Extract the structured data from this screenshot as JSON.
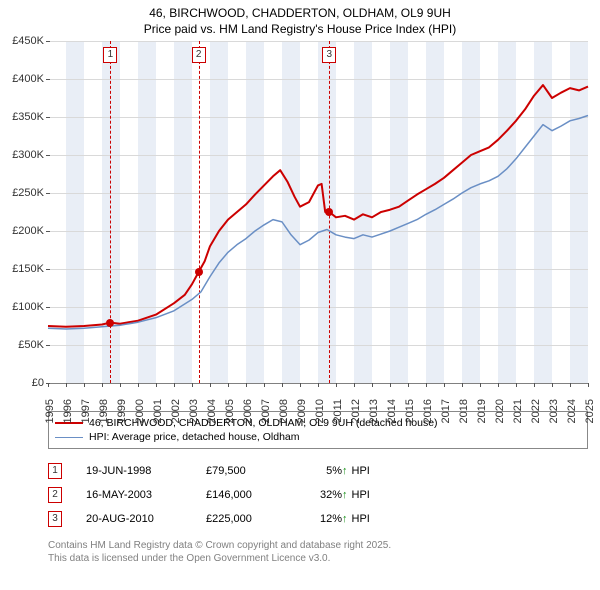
{
  "title": {
    "line1": "46, BIRCHWOOD, CHADDERTON, OLDHAM, OL9 9UH",
    "line2": "Price paid vs. HM Land Registry's House Price Index (HPI)"
  },
  "chart": {
    "type": "line",
    "background_color": "#ffffff",
    "grid_color": "#d9d9d9",
    "zero_line_color": "#808080",
    "marker_border_color": "#cc0000",
    "vband_color": "#e9eef6",
    "xlim": [
      1995,
      2025
    ],
    "ylim": [
      0,
      450000
    ],
    "ytick_step": 50000,
    "yticks": [
      {
        "v": 0,
        "label": "£0"
      },
      {
        "v": 50000,
        "label": "£50K"
      },
      {
        "v": 100000,
        "label": "£100K"
      },
      {
        "v": 150000,
        "label": "£150K"
      },
      {
        "v": 200000,
        "label": "£200K"
      },
      {
        "v": 250000,
        "label": "£250K"
      },
      {
        "v": 300000,
        "label": "£300K"
      },
      {
        "v": 350000,
        "label": "£350K"
      },
      {
        "v": 400000,
        "label": "£400K"
      },
      {
        "v": 450000,
        "label": "£450K"
      }
    ],
    "xticks": [
      1995,
      1996,
      1997,
      1998,
      1999,
      2000,
      2001,
      2002,
      2003,
      2004,
      2005,
      2006,
      2007,
      2008,
      2009,
      2010,
      2011,
      2012,
      2013,
      2014,
      2015,
      2016,
      2017,
      2018,
      2019,
      2020,
      2021,
      2022,
      2023,
      2024,
      2025
    ],
    "vbands_start": [
      1996,
      1998,
      2000,
      2002,
      2004,
      2006,
      2008,
      2010,
      2012,
      2014,
      2016,
      2018,
      2020,
      2022,
      2024
    ],
    "series": [
      {
        "id": "price_paid",
        "label": "46, BIRCHWOOD, CHADDERTON, OLDHAM, OL9 9UH (detached house)",
        "color": "#cc0000",
        "line_width": 2,
        "points": [
          [
            1995.0,
            75000
          ],
          [
            1996.0,
            74000
          ],
          [
            1997.0,
            75000
          ],
          [
            1998.0,
            77000
          ],
          [
            1998.47,
            79500
          ],
          [
            1999.0,
            78000
          ],
          [
            2000.0,
            82000
          ],
          [
            2001.0,
            90000
          ],
          [
            2002.0,
            105000
          ],
          [
            2002.6,
            116000
          ],
          [
            2003.0,
            130000
          ],
          [
            2003.37,
            146000
          ],
          [
            2003.7,
            160000
          ],
          [
            2004.0,
            180000
          ],
          [
            2004.5,
            200000
          ],
          [
            2005.0,
            215000
          ],
          [
            2005.5,
            225000
          ],
          [
            2006.0,
            235000
          ],
          [
            2006.5,
            248000
          ],
          [
            2007.0,
            260000
          ],
          [
            2007.5,
            272000
          ],
          [
            2007.9,
            280000
          ],
          [
            2008.3,
            265000
          ],
          [
            2008.7,
            245000
          ],
          [
            2009.0,
            232000
          ],
          [
            2009.5,
            238000
          ],
          [
            2010.0,
            260000
          ],
          [
            2010.2,
            262000
          ],
          [
            2010.4,
            225000
          ],
          [
            2010.63,
            225000
          ],
          [
            2011.0,
            218000
          ],
          [
            2011.5,
            220000
          ],
          [
            2012.0,
            215000
          ],
          [
            2012.5,
            222000
          ],
          [
            2013.0,
            218000
          ],
          [
            2013.5,
            225000
          ],
          [
            2014.0,
            228000
          ],
          [
            2014.5,
            232000
          ],
          [
            2015.0,
            240000
          ],
          [
            2015.5,
            248000
          ],
          [
            2016.0,
            255000
          ],
          [
            2016.5,
            262000
          ],
          [
            2017.0,
            270000
          ],
          [
            2017.5,
            280000
          ],
          [
            2018.0,
            290000
          ],
          [
            2018.5,
            300000
          ],
          [
            2019.0,
            305000
          ],
          [
            2019.5,
            310000
          ],
          [
            2020.0,
            320000
          ],
          [
            2020.5,
            332000
          ],
          [
            2021.0,
            345000
          ],
          [
            2021.5,
            360000
          ],
          [
            2022.0,
            378000
          ],
          [
            2022.5,
            392000
          ],
          [
            2023.0,
            375000
          ],
          [
            2023.5,
            382000
          ],
          [
            2024.0,
            388000
          ],
          [
            2024.5,
            385000
          ],
          [
            2025.0,
            390000
          ]
        ]
      },
      {
        "id": "hpi",
        "label": "HPI: Average price, detached house, Oldham",
        "color": "#6a8fc5",
        "line_width": 1.5,
        "points": [
          [
            1995.0,
            72000
          ],
          [
            1996.0,
            71000
          ],
          [
            1997.0,
            72000
          ],
          [
            1998.0,
            74000
          ],
          [
            1999.0,
            76000
          ],
          [
            2000.0,
            80000
          ],
          [
            2001.0,
            86000
          ],
          [
            2002.0,
            95000
          ],
          [
            2003.0,
            110000
          ],
          [
            2003.5,
            120000
          ],
          [
            2004.0,
            140000
          ],
          [
            2004.5,
            158000
          ],
          [
            2005.0,
            172000
          ],
          [
            2005.5,
            182000
          ],
          [
            2006.0,
            190000
          ],
          [
            2006.5,
            200000
          ],
          [
            2007.0,
            208000
          ],
          [
            2007.5,
            215000
          ],
          [
            2008.0,
            212000
          ],
          [
            2008.5,
            195000
          ],
          [
            2009.0,
            182000
          ],
          [
            2009.5,
            188000
          ],
          [
            2010.0,
            198000
          ],
          [
            2010.5,
            202000
          ],
          [
            2011.0,
            195000
          ],
          [
            2011.5,
            192000
          ],
          [
            2012.0,
            190000
          ],
          [
            2012.5,
            195000
          ],
          [
            2013.0,
            192000
          ],
          [
            2013.5,
            196000
          ],
          [
            2014.0,
            200000
          ],
          [
            2014.5,
            205000
          ],
          [
            2015.0,
            210000
          ],
          [
            2015.5,
            215000
          ],
          [
            2016.0,
            222000
          ],
          [
            2016.5,
            228000
          ],
          [
            2017.0,
            235000
          ],
          [
            2017.5,
            242000
          ],
          [
            2018.0,
            250000
          ],
          [
            2018.5,
            257000
          ],
          [
            2019.0,
            262000
          ],
          [
            2019.5,
            266000
          ],
          [
            2020.0,
            272000
          ],
          [
            2020.5,
            282000
          ],
          [
            2021.0,
            295000
          ],
          [
            2021.5,
            310000
          ],
          [
            2022.0,
            325000
          ],
          [
            2022.5,
            340000
          ],
          [
            2023.0,
            332000
          ],
          [
            2023.5,
            338000
          ],
          [
            2024.0,
            345000
          ],
          [
            2024.5,
            348000
          ],
          [
            2025.0,
            352000
          ]
        ]
      }
    ],
    "sale_markers": [
      {
        "n": "1",
        "x": 1998.47,
        "y": 79500
      },
      {
        "n": "2",
        "x": 2003.37,
        "y": 146000
      },
      {
        "n": "3",
        "x": 2010.63,
        "y": 225000
      }
    ]
  },
  "legend": {
    "items": [
      {
        "series": "price_paid"
      },
      {
        "series": "hpi"
      }
    ]
  },
  "sales": [
    {
      "n": "1",
      "date": "19-JUN-1998",
      "price": "£79,500",
      "pct": "5%",
      "arrow": "↑",
      "arrow_color": "#1a8f1a",
      "suffix": "HPI"
    },
    {
      "n": "2",
      "date": "16-MAY-2003",
      "price": "£146,000",
      "pct": "32%",
      "arrow": "↑",
      "arrow_color": "#1a8f1a",
      "suffix": "HPI"
    },
    {
      "n": "3",
      "date": "20-AUG-2010",
      "price": "£225,000",
      "pct": "12%",
      "arrow": "↑",
      "arrow_color": "#1a8f1a",
      "suffix": "HPI"
    }
  ],
  "footer": {
    "line1": "Contains HM Land Registry data © Crown copyright and database right 2025.",
    "line2": "This data is licensed under the Open Government Licence v3.0."
  }
}
